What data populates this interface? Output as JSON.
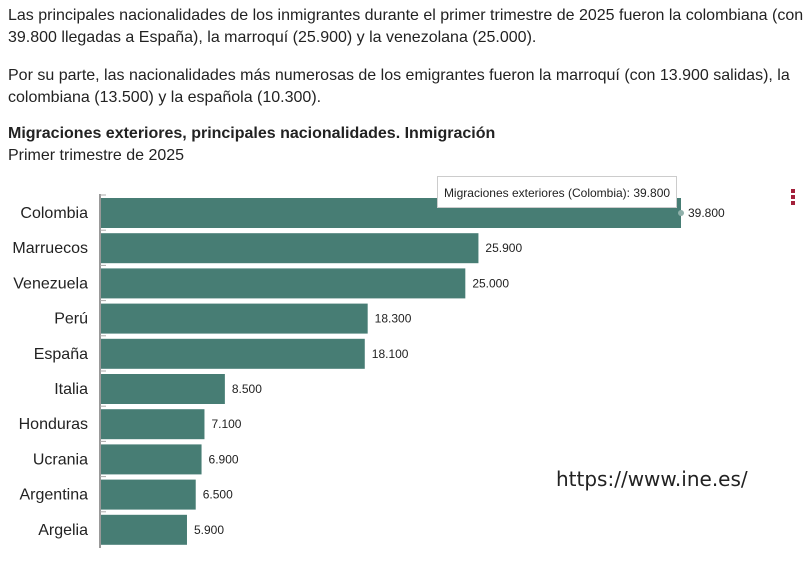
{
  "text": {
    "p1": "Las principales nacionalidades de los inmigrantes durante el primer trimestre de 2025 fueron la colombiana (con 39.800 llegadas a España), la marroquí (25.900) y la venezolana (25.000).",
    "p2": "Por su parte, las nacionalidades más numerosas de los emigrantes fueron la marroquí (con 13.900 salidas), la colombiana (13.500) y la española (10.300).",
    "url": "https://www.ine.es/"
  },
  "chart_data": {
    "type": "bar",
    "orientation": "horizontal",
    "title": "Migraciones exteriores, principales nacionalidades. Inmigración",
    "subtitle": "Primer trimestre de 2025",
    "categories": [
      "Colombia",
      "Marruecos",
      "Venezuela",
      "Perú",
      "España",
      "Italia",
      "Honduras",
      "Ucrania",
      "Argentina",
      "Argelia"
    ],
    "values": [
      39800,
      25900,
      25000,
      18300,
      18100,
      8500,
      7100,
      6900,
      6500,
      5900
    ],
    "labels": [
      "39.800",
      "25.900",
      "25.000",
      "18.300",
      "18.100",
      "8.500",
      "7.100",
      "6.900",
      "6.500",
      "5.900"
    ],
    "xlim": [
      0,
      39800
    ],
    "color": "#477d74",
    "tooltip": "Migraciones exteriores (Colombia): 39.800"
  }
}
